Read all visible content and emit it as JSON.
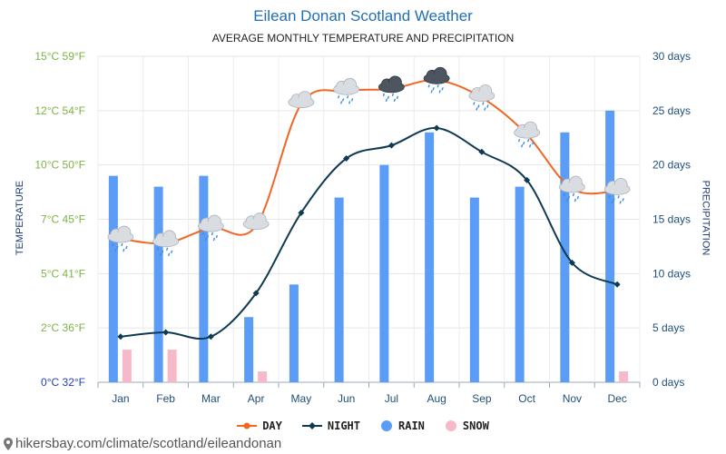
{
  "header": {
    "title": "Eilean Donan Scotland Weather",
    "subtitle": "AVERAGE MONTHLY TEMPERATURE AND PRECIPITATION"
  },
  "footer": {
    "site_text": "hikersbay.com/climate/scotland/eileandonan"
  },
  "chart_data": {
    "type": "line+bar",
    "categories": [
      "Jan",
      "Feb",
      "Mar",
      "Apr",
      "May",
      "Jun",
      "Jul",
      "Aug",
      "Sep",
      "Oct",
      "Nov",
      "Dec"
    ],
    "left_axis": {
      "label": "TEMPERATURE",
      "range": [
        0,
        15
      ],
      "ticks": [
        {
          "value": 0,
          "label": "0°C 32°F"
        },
        {
          "value": 2.5,
          "label": "2°C 36°F"
        },
        {
          "value": 5,
          "label": "5°C 41°F"
        },
        {
          "value": 7.5,
          "label": "7°C 45°F"
        },
        {
          "value": 10,
          "label": "10°C 50°F"
        },
        {
          "value": 12.5,
          "label": "12°C 54°F"
        },
        {
          "value": 15,
          "label": "15°C 59°F"
        }
      ]
    },
    "right_axis": {
      "label": "PRECIPITATION",
      "range": [
        0,
        30
      ],
      "ticks": [
        {
          "value": 0,
          "label": "0 days"
        },
        {
          "value": 5,
          "label": "5 days"
        },
        {
          "value": 10,
          "label": "10 days"
        },
        {
          "value": 15,
          "label": "15 days"
        },
        {
          "value": 20,
          "label": "20 days"
        },
        {
          "value": 25,
          "label": "25 days"
        },
        {
          "value": 30,
          "label": "30 days"
        }
      ]
    },
    "series": [
      {
        "name": "DAY",
        "axis": "left",
        "color": "#f26522",
        "values": [
          6.6,
          6.4,
          7.1,
          7.2,
          12.8,
          13.4,
          13.5,
          13.9,
          13.1,
          11.4,
          8.9,
          8.8
        ]
      },
      {
        "name": "NIGHT",
        "axis": "left",
        "color": "#0e3a52",
        "values": [
          2.1,
          2.3,
          2.1,
          4.1,
          7.8,
          10.3,
          10.9,
          11.7,
          10.6,
          9.3,
          5.5,
          4.5
        ]
      },
      {
        "name": "RAIN",
        "axis": "right",
        "color": "#5b9cf6",
        "values": [
          19,
          18,
          19,
          6,
          9,
          17,
          20,
          23,
          17,
          18,
          23,
          25
        ]
      },
      {
        "name": "SNOW",
        "axis": "right",
        "color": "#f7b9c8",
        "values": [
          3,
          3,
          0,
          1,
          0,
          0,
          0,
          0,
          0,
          0,
          0,
          1
        ]
      }
    ],
    "weather_icons": [
      "cloud-rain",
      "cloud-rain",
      "cloud-rain",
      "sun-cloud",
      "sun-cloud",
      "cloud-rain",
      "storm-rain",
      "storm-rain",
      "cloud-rain",
      "cloud-rain",
      "cloud-rain",
      "cloud-rain"
    ],
    "legend_position": "bottom-center",
    "grid": true
  }
}
